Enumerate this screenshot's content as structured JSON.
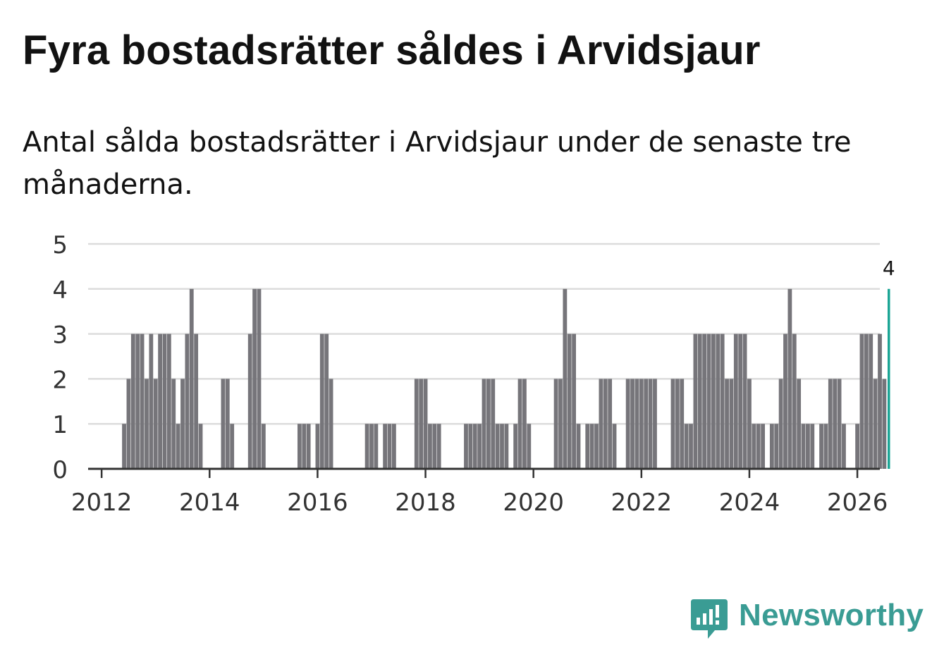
{
  "title": "Fyra bostadsrätter såldes i Arvidsjaur",
  "subtitle": "Antal sålda bostadsrätter i Arvidsjaur under de senaste tre månaderna.",
  "brand": {
    "name": "Newsworthy",
    "color": "#3a9c94"
  },
  "chart_data": {
    "type": "bar",
    "title": "Fyra bostadsrätter såldes i Arvidsjaur",
    "subtitle": "Antal sålda bostadsrätter i Arvidsjaur under de senaste tre månaderna.",
    "xlabel": "",
    "ylabel": "",
    "ylim": [
      0,
      5
    ],
    "yticks": [
      "0",
      "1",
      "2",
      "3",
      "4",
      "5"
    ],
    "xticks": [
      "2012",
      "2014",
      "2016",
      "2018",
      "2020",
      "2022",
      "2024",
      "2026"
    ],
    "x_start": "2011-10",
    "x_end": "2026-06",
    "first_bar": "2012-06",
    "bar_color": "#76757a",
    "highlight_color": "#1aa595",
    "grid": true,
    "values": [
      1,
      2,
      3,
      3,
      3,
      2,
      3,
      2,
      3,
      3,
      3,
      2,
      1,
      2,
      3,
      4,
      3,
      1,
      0,
      0,
      0,
      0,
      2,
      2,
      1,
      0,
      0,
      0,
      3,
      4,
      4,
      1,
      0,
      0,
      0,
      0,
      0,
      0,
      0,
      1,
      1,
      1,
      0,
      1,
      3,
      3,
      2,
      0,
      0,
      0,
      0,
      0,
      0,
      0,
      1,
      1,
      1,
      0,
      1,
      1,
      1,
      0,
      0,
      0,
      0,
      2,
      2,
      2,
      1,
      1,
      1,
      0,
      0,
      0,
      0,
      0,
      1,
      1,
      1,
      1,
      2,
      2,
      2,
      1,
      1,
      1,
      0,
      1,
      2,
      2,
      1,
      0,
      0,
      0,
      0,
      0,
      2,
      2,
      4,
      3,
      3,
      1,
      0,
      1,
      1,
      1,
      2,
      2,
      2,
      1,
      0,
      0,
      2,
      2,
      2,
      2,
      2,
      2,
      2,
      0,
      0,
      0,
      2,
      2,
      2,
      1,
      1,
      3,
      3,
      3,
      3,
      3,
      3,
      3,
      2,
      2,
      3,
      3,
      3,
      2,
      1,
      1,
      1,
      0,
      1,
      1,
      2,
      3,
      4,
      3,
      2,
      1,
      1,
      1,
      0,
      1,
      1,
      2,
      2,
      2,
      1,
      0,
      0,
      1,
      3,
      3,
      3,
      2,
      3,
      2,
      4
    ],
    "highlight_label": "4"
  }
}
